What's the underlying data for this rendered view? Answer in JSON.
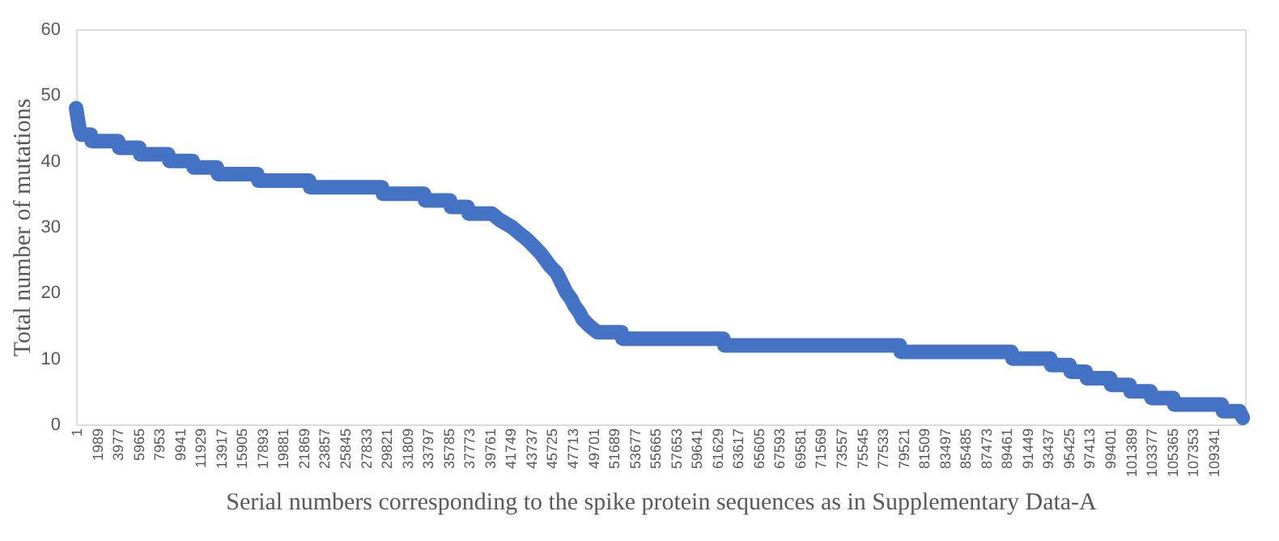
{
  "chart_data": {
    "type": "line",
    "xlabel": "Serial numbers corresponding to the spike protein sequences as in Supplementary Data-A",
    "ylabel": "Total number of mutations",
    "xlim": [
      1,
      112400
    ],
    "ylim": [
      0,
      60
    ],
    "yticks": [
      0,
      10,
      20,
      30,
      40,
      50,
      60
    ],
    "xticks": [
      1,
      1989,
      3977,
      5965,
      7953,
      9941,
      11929,
      13917,
      15905,
      17893,
      19881,
      21869,
      23857,
      25845,
      27833,
      29821,
      31809,
      33797,
      35785,
      37773,
      39761,
      41749,
      43737,
      45725,
      47713,
      49701,
      51689,
      53677,
      55665,
      57653,
      59641,
      61629,
      63617,
      65605,
      67593,
      69581,
      71569,
      73557,
      75545,
      77533,
      79521,
      81509,
      83497,
      85485,
      87473,
      89461,
      91449,
      93437,
      95425,
      97413,
      99401,
      101389,
      103377,
      105365,
      107353,
      109341
    ],
    "grid": false,
    "line_style": "solid",
    "series": [
      {
        "color": "#4472c4",
        "x": [
          1,
          100,
          200,
          300,
          500,
          1401,
          1500,
          4047,
          4150,
          6069,
          6170,
          8870,
          8970,
          11204,
          11300,
          13538,
          13640,
          17428,
          17530,
          22407,
          22510,
          29409,
          29510,
          33455,
          33560,
          35945,
          36050,
          37656,
          37760,
          39990,
          40768,
          41865,
          42635,
          43413,
          44036,
          44658,
          45125,
          45592,
          46214,
          46525,
          46837,
          47148,
          47615,
          47926,
          48393,
          48704,
          49327,
          50105,
          52438,
          52540,
          62241,
          62340,
          79201,
          79300,
          89938,
          90040,
          93672,
          93770,
          95540,
          95640,
          97096,
          97200,
          99430,
          99530,
          101286,
          101390,
          103317,
          103420,
          105495,
          105600,
          110163,
          110270,
          111875,
          112186
        ],
        "values": [
          48,
          47,
          46,
          45,
          44,
          44,
          43,
          43,
          42,
          42,
          41,
          41,
          40,
          40,
          39,
          39,
          38,
          38,
          37,
          37,
          36,
          36,
          35,
          35,
          34,
          34,
          33,
          33,
          32,
          32,
          31,
          30,
          29,
          28,
          27,
          26,
          25,
          24,
          23,
          22,
          21,
          20,
          19,
          18,
          17,
          16,
          15,
          14,
          14,
          13,
          13,
          12,
          12,
          11,
          11,
          10,
          10,
          9,
          9,
          8,
          8,
          7,
          7,
          6,
          6,
          5,
          5,
          4,
          4,
          3,
          3,
          2,
          2,
          1
        ]
      }
    ]
  }
}
